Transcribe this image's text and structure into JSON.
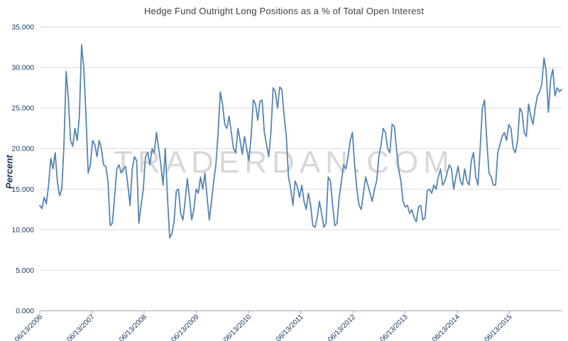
{
  "watermark": "TRADERDAN.COM",
  "colors": {
    "line": "#5585b5",
    "axis_text": "#17365d",
    "title_text": "#3f3f3f",
    "gridline": "#d9d9d9",
    "axis_line": "#a6a6a6",
    "watermark": "#c8c8c8"
  },
  "chart_data": {
    "type": "line",
    "title": "Hedge Fund Outright Long Positions as a % of Total Open Interest",
    "ylabel": "Percent",
    "xlabel": "",
    "ylim": [
      0,
      35
    ],
    "y_tick_step": 5,
    "y_tick_labels": [
      "0.000",
      "5.000",
      "10.000",
      "15.000",
      "20.000",
      "25.000",
      "30.000",
      "35.000"
    ],
    "x_tick_labels": [
      "06/13/2006",
      "06/13/2007",
      "06/13/2008",
      "06/13/2009",
      "06/13/2010",
      "06/13/2011",
      "06/13/2012",
      "06/13/2013",
      "06/13/2014",
      "06/13/2015"
    ],
    "legend": "none",
    "grid": "horizontal",
    "series_name": "Hedge Fund Outright Long Positions % of Open Interest",
    "values": [
      13.0,
      12.6,
      14.0,
      13.2,
      15.5,
      18.8,
      17.5,
      19.5,
      16.0,
      14.2,
      15.0,
      20.5,
      29.5,
      26.0,
      21.0,
      20.3,
      22.5,
      21.0,
      24.0,
      32.8,
      30.0,
      24.0,
      17.0,
      18.0,
      21.0,
      20.5,
      19.0,
      21.0,
      20.0,
      18.0,
      17.8,
      16.0,
      10.5,
      10.8,
      14.0,
      17.5,
      18.0,
      17.0,
      17.5,
      17.8,
      15.5,
      13.0,
      17.5,
      19.0,
      18.5,
      10.8,
      13.0,
      15.0,
      19.0,
      19.5,
      18.0,
      20.0,
      19.5,
      22.0,
      20.0,
      18.0,
      15.5,
      20.0,
      14.0,
      9.0,
      9.5,
      11.0,
      14.8,
      15.0,
      12.0,
      11.2,
      13.5,
      16.3,
      14.0,
      11.2,
      12.5,
      15.0,
      14.5,
      16.5,
      15.0,
      17.0,
      14.0,
      11.2,
      13.5,
      16.0,
      18.0,
      22.0,
      27.0,
      25.5,
      23.0,
      22.5,
      24.0,
      22.0,
      20.0,
      19.5,
      22.5,
      21.0,
      19.3,
      21.5,
      20.0,
      18.5,
      21.5,
      26.0,
      25.5,
      23.5,
      25.8,
      26.0,
      22.0,
      20.5,
      19.0,
      22.0,
      27.5,
      27.0,
      25.0,
      27.6,
      27.3,
      24.0,
      21.5,
      16.5,
      15.0,
      13.0,
      16.0,
      15.3,
      14.0,
      15.5,
      13.5,
      12.5,
      14.5,
      13.0,
      10.5,
      10.3,
      11.5,
      13.5,
      12.0,
      10.3,
      10.8,
      16.5,
      16.0,
      13.0,
      10.5,
      10.8,
      14.0,
      16.0,
      18.0,
      17.5,
      19.0,
      21.0,
      22.0,
      18.0,
      15.0,
      13.0,
      12.5,
      14.5,
      16.5,
      15.5,
      14.5,
      13.5,
      15.0,
      16.0,
      19.0,
      20.5,
      22.5,
      22.0,
      20.0,
      19.5,
      23.0,
      22.8,
      20.0,
      17.5,
      16.0,
      13.5,
      12.8,
      13.0,
      12.0,
      12.5,
      11.5,
      11.0,
      12.8,
      13.0,
      11.2,
      11.5,
      14.8,
      15.0,
      14.5,
      15.5,
      15.0,
      16.5,
      17.5,
      15.5,
      16.0,
      17.0,
      18.0,
      17.5,
      15.0,
      16.5,
      17.8,
      16.0,
      15.5,
      17.5,
      16.0,
      15.5,
      18.5,
      19.5,
      16.5,
      15.5,
      20.0,
      25.0,
      26.0,
      21.0,
      17.0,
      16.5,
      15.5,
      15.5,
      19.5,
      20.5,
      21.5,
      22.0,
      21.0,
      23.0,
      22.5,
      20.0,
      19.5,
      21.0,
      25.0,
      24.5,
      22.0,
      21.5,
      25.5,
      24.0,
      23.0,
      25.0,
      26.5,
      27.0,
      28.0,
      31.2,
      29.5,
      24.5,
      28.5,
      29.8,
      26.5,
      27.5,
      27.0,
      27.3
    ]
  }
}
